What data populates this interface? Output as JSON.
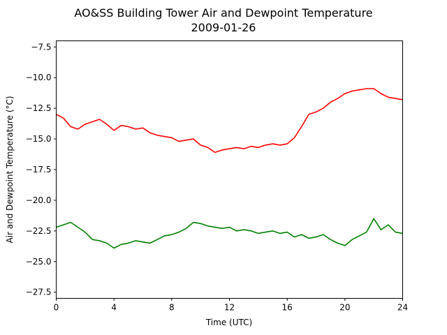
{
  "chart_data": {
    "type": "line",
    "title": "AO&SS Building Tower Air and Dewpoint Temperature",
    "subtitle": "2009-01-26",
    "xlabel": "Time (UTC)",
    "ylabel": "Air and Dewpoint Temperature (°C)",
    "xlim": [
      0,
      24
    ],
    "ylim": [
      -28,
      -7
    ],
    "xticks": [
      0,
      4,
      8,
      12,
      16,
      20,
      24
    ],
    "xtick_labels": [
      "0",
      "4",
      "8",
      "12",
      "16",
      "20",
      "24"
    ],
    "yticks": [
      -27.5,
      -25.0,
      -22.5,
      -20.0,
      -17.5,
      -15.0,
      -12.5,
      -10.0,
      -7.5
    ],
    "ytick_labels": [
      "−27.5",
      "−25.0",
      "−22.5",
      "−20.0",
      "−17.5",
      "−15.0",
      "−12.5",
      "−10.0",
      "−7.5"
    ],
    "grid": false,
    "legend": false,
    "series": [
      {
        "color": "#ff0000",
        "x": [
          0,
          0.5,
          1.0,
          1.5,
          2.0,
          2.5,
          3.0,
          3.5,
          4.0,
          4.5,
          5.0,
          5.5,
          6.0,
          6.5,
          7.0,
          7.5,
          8.0,
          8.5,
          9.0,
          9.5,
          10.0,
          10.5,
          11.0,
          11.5,
          12.0,
          12.5,
          13.0,
          13.5,
          14.0,
          14.5,
          15.0,
          15.5,
          16.0,
          16.5,
          17.0,
          17.5,
          18.0,
          18.5,
          19.0,
          19.5,
          20.0,
          20.5,
          21.0,
          21.5,
          22.0,
          22.5,
          23.0,
          23.5,
          24.0
        ],
        "y": [
          -13.0,
          -13.3,
          -14.0,
          -14.2,
          -13.8,
          -13.6,
          -13.4,
          -13.8,
          -14.3,
          -13.9,
          -14.0,
          -14.2,
          -14.1,
          -14.5,
          -14.7,
          -14.8,
          -14.9,
          -15.2,
          -15.1,
          -15.0,
          -15.5,
          -15.7,
          -16.1,
          -15.9,
          -15.8,
          -15.7,
          -15.8,
          -15.6,
          -15.7,
          -15.5,
          -15.4,
          -15.5,
          -15.4,
          -14.9,
          -14.0,
          -13.0,
          -12.8,
          -12.5,
          -12.0,
          -11.7,
          -11.3,
          -11.1,
          -11.0,
          -10.9,
          -10.9,
          -11.3,
          -11.6,
          -11.7,
          -11.8
        ]
      },
      {
        "color": "#008000",
        "x": [
          0,
          0.5,
          1.0,
          1.5,
          2.0,
          2.5,
          3.0,
          3.5,
          4.0,
          4.5,
          5.0,
          5.5,
          6.0,
          6.5,
          7.0,
          7.5,
          8.0,
          8.5,
          9.0,
          9.5,
          10.0,
          10.5,
          11.0,
          11.5,
          12.0,
          12.5,
          13.0,
          13.5,
          14.0,
          14.5,
          15.0,
          15.5,
          16.0,
          16.5,
          17.0,
          17.5,
          18.0,
          18.5,
          19.0,
          19.5,
          20.0,
          20.5,
          21.0,
          21.5,
          22.0,
          22.5,
          23.0,
          23.5,
          24.0
        ],
        "y": [
          -22.2,
          -22.0,
          -21.8,
          -22.2,
          -22.6,
          -23.2,
          -23.3,
          -23.5,
          -23.9,
          -23.6,
          -23.5,
          -23.3,
          -23.4,
          -23.5,
          -23.2,
          -22.9,
          -22.8,
          -22.6,
          -22.3,
          -21.8,
          -21.9,
          -22.1,
          -22.2,
          -22.3,
          -22.2,
          -22.5,
          -22.4,
          -22.5,
          -22.7,
          -22.6,
          -22.5,
          -22.7,
          -22.6,
          -23.0,
          -22.8,
          -23.1,
          -23.0,
          -22.8,
          -23.2,
          -23.5,
          -23.7,
          -23.2,
          -22.9,
          -22.6,
          -21.5,
          -22.4,
          -22.0,
          -22.6,
          -22.7
        ]
      }
    ]
  }
}
